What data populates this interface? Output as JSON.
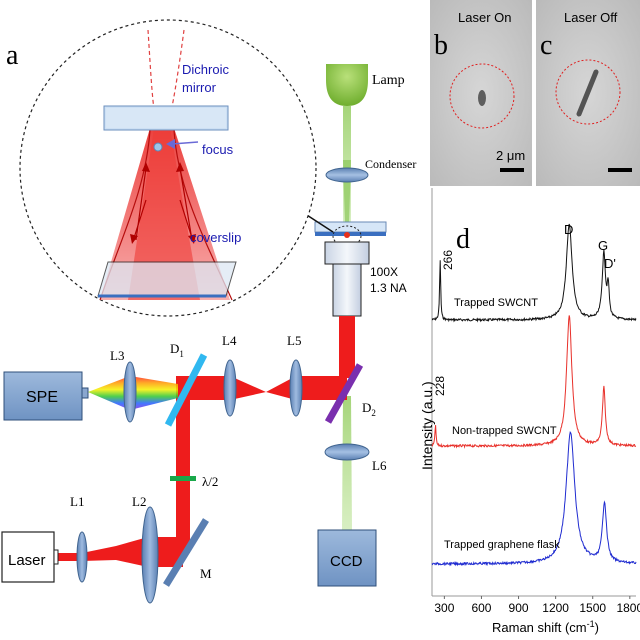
{
  "panels": {
    "a": "a",
    "b": "b",
    "c": "c",
    "d": "d"
  },
  "setup_labels": {
    "lamp": "Lamp",
    "condenser": "Condenser",
    "objective_mag": "100X",
    "objective_na": "1.3 NA",
    "spe": "SPE",
    "laser": "Laser",
    "ccd": "CCD",
    "l1": "L1",
    "l2": "L2",
    "l3": "L3",
    "l4": "L4",
    "l5": "L5",
    "l6": "L6",
    "d1_main": "D",
    "d1_sub": "1",
    "d2_main": "D",
    "d2_sub": "2",
    "half_wave": "λ/2",
    "mirror": "M"
  },
  "inset_labels": {
    "dichroic_1": "Dichroic",
    "dichroic_2": "mirror",
    "focus": "focus",
    "coverslip": "coverslip"
  },
  "micrographs": {
    "on": "Laser On",
    "off": "Laser Off",
    "scale": "2 μm"
  },
  "spectra": {
    "y_label": "Intensity (a.u.)",
    "x_label_main": "Raman shift (cm",
    "x_label_sup": "-1",
    "x_label_end": ")",
    "x_ticks": [
      "300",
      "600",
      "900",
      "1200",
      "1500",
      "1800"
    ],
    "peak_labels": {
      "d": "D",
      "g": "G",
      "d_prime": "D'",
      "rbm_266": "266",
      "rbm_228": "228"
    },
    "traces": {
      "t1": "Trapped SWCNT",
      "t2": "Non-trapped SWCNT",
      "t3": "Trapped graphene flask"
    },
    "colors": {
      "t1": "#111111",
      "t2": "#e8302a",
      "t3": "#1f2bd0"
    }
  },
  "chart_data": {
    "type": "line",
    "xlabel": "Raman shift (cm-1)",
    "ylabel": "Intensity (a.u.)",
    "xlim": [
      200,
      1850
    ],
    "x_ticks": [
      300,
      600,
      900,
      1200,
      1500,
      1800
    ],
    "series": [
      {
        "name": "Trapped SWCNT",
        "peaks_cm-1": [
          266,
          1310,
          1590,
          1610
        ]
      },
      {
        "name": "Non-trapped SWCNT",
        "peaks_cm-1": [
          228,
          1310,
          1590
        ]
      },
      {
        "name": "Trapped graphene flask",
        "peaks_cm-1": [
          1320,
          1595
        ]
      }
    ]
  }
}
